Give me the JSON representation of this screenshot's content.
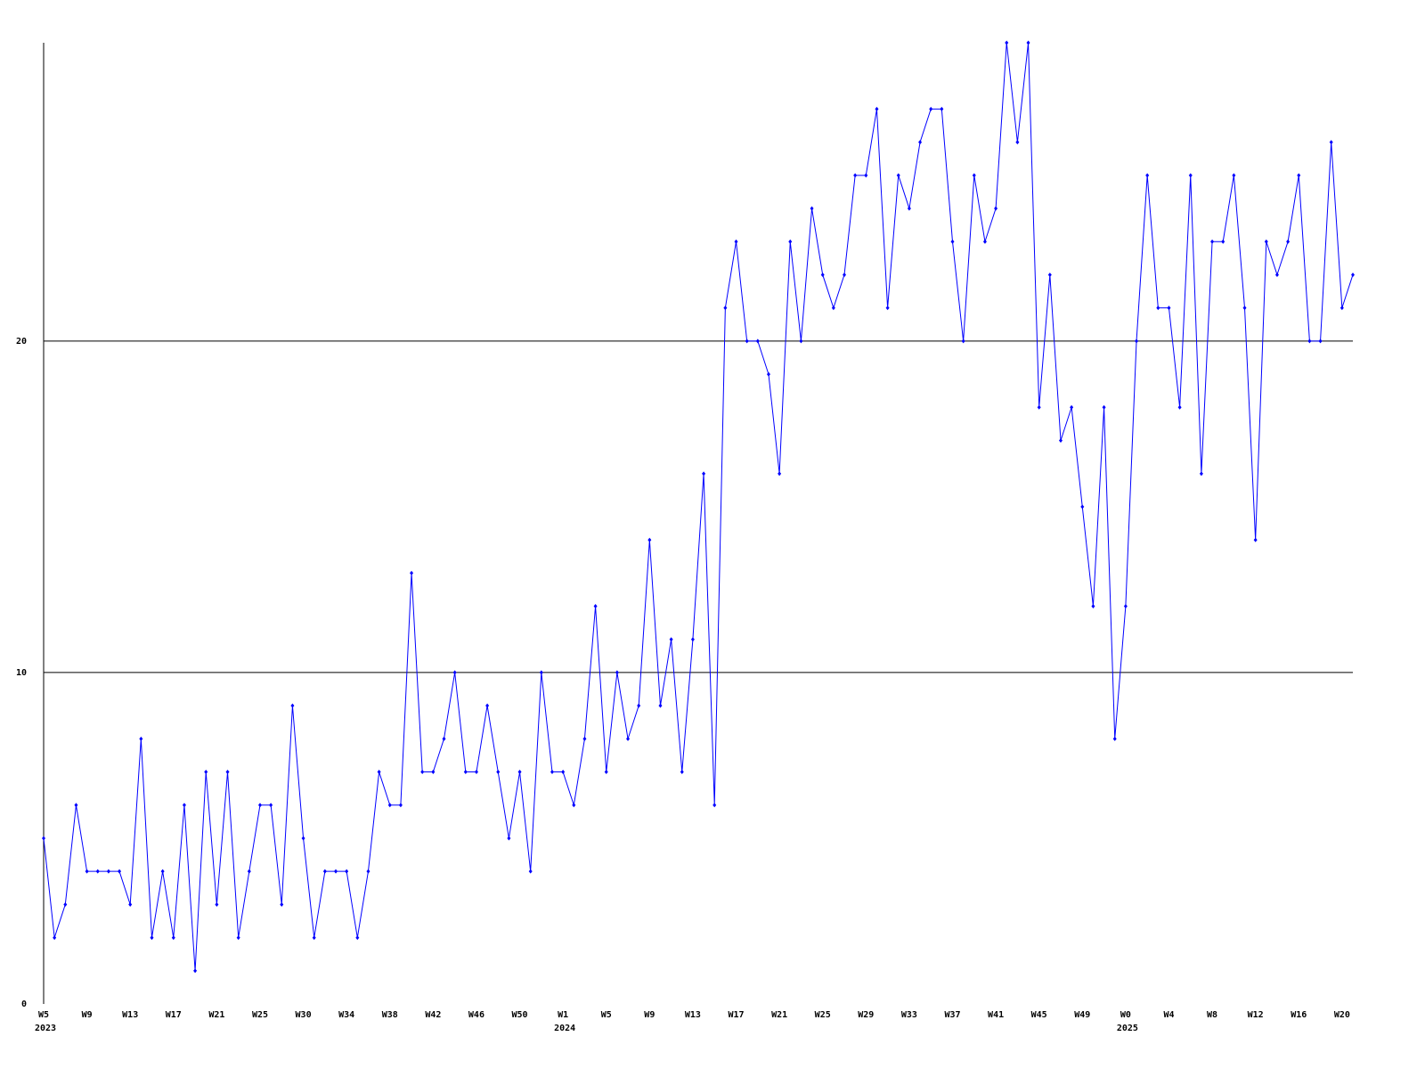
{
  "chart_data": {
    "type": "line",
    "categories": [
      "W5",
      null,
      null,
      null,
      "W9",
      null,
      null,
      null,
      "W13",
      null,
      null,
      null,
      "W17",
      null,
      null,
      null,
      "W21",
      null,
      null,
      null,
      "W25",
      null,
      null,
      null,
      "W30",
      null,
      null,
      null,
      "W34",
      null,
      null,
      null,
      "W38",
      null,
      null,
      null,
      "W42",
      null,
      null,
      null,
      "W46",
      null,
      null,
      null,
      "W50",
      null,
      null,
      null,
      "W1",
      null,
      null,
      null,
      "W5",
      null,
      null,
      null,
      "W9",
      null,
      null,
      null,
      "W13",
      null,
      null,
      null,
      "W17",
      null,
      null,
      null,
      "W21",
      null,
      null,
      null,
      "W25",
      null,
      null,
      null,
      "W29",
      null,
      null,
      null,
      "W33",
      null,
      null,
      null,
      "W37",
      null,
      null,
      null,
      "W41",
      null,
      null,
      null,
      "W45",
      null,
      null,
      null,
      "W49",
      null,
      null,
      null,
      "W0",
      null,
      null,
      null,
      "W4",
      null,
      null,
      null,
      "W8",
      null,
      null,
      null,
      "W12",
      null,
      null,
      null,
      "W16",
      null,
      null,
      null,
      "W20",
      null
    ],
    "year_labels": [
      "2023",
      null,
      null,
      null,
      null,
      null,
      null,
      null,
      null,
      null,
      null,
      null,
      null,
      null,
      null,
      null,
      null,
      null,
      null,
      null,
      null,
      null,
      null,
      null,
      null,
      null,
      null,
      null,
      null,
      null,
      null,
      null,
      null,
      null,
      null,
      null,
      null,
      null,
      null,
      null,
      null,
      null,
      null,
      null,
      null,
      null,
      null,
      null,
      "2024",
      null,
      null,
      null,
      null,
      null,
      null,
      null,
      null,
      null,
      null,
      null,
      null,
      null,
      null,
      null,
      null,
      null,
      null,
      null,
      null,
      null,
      null,
      null,
      null,
      null,
      null,
      null,
      null,
      null,
      null,
      null,
      null,
      null,
      null,
      null,
      null,
      null,
      null,
      null,
      null,
      null,
      null,
      null,
      null,
      null,
      null,
      null,
      null,
      null,
      null,
      null,
      "2025",
      null,
      null,
      null,
      null,
      null,
      null,
      null,
      null,
      null,
      null,
      null,
      null,
      null,
      null,
      null,
      null,
      null,
      null,
      null,
      null
    ],
    "series": [
      {
        "color": "#0000ff",
        "values": [
          5,
          2,
          3,
          6,
          4,
          4,
          4,
          4,
          3,
          8,
          2,
          4,
          2,
          6,
          1,
          7,
          3,
          7,
          2,
          4,
          6,
          6,
          3,
          9,
          5,
          2,
          4,
          4,
          4,
          2,
          4,
          7,
          6,
          6,
          13,
          7,
          7,
          8,
          10,
          7,
          7,
          9,
          7,
          5,
          7,
          4,
          10,
          7,
          7,
          6,
          8,
          12,
          7,
          10,
          8,
          9,
          14,
          9,
          11,
          7,
          11,
          16,
          6,
          21,
          23,
          20,
          20,
          19,
          16,
          23,
          20,
          24,
          22,
          21,
          22,
          25,
          25,
          27,
          21,
          25,
          24,
          26,
          27,
          27,
          23,
          20,
          25,
          23,
          24,
          29,
          26,
          29,
          18,
          22,
          17,
          18,
          15,
          12,
          18,
          8,
          12,
          20,
          25,
          21,
          21,
          18,
          25,
          16,
          23,
          23,
          25,
          21,
          14,
          23,
          22,
          23,
          25,
          20,
          20,
          26,
          21,
          22
        ]
      }
    ],
    "ylim": [
      0,
      29
    ],
    "yticks": [
      0,
      10,
      20
    ],
    "grid": true
  }
}
